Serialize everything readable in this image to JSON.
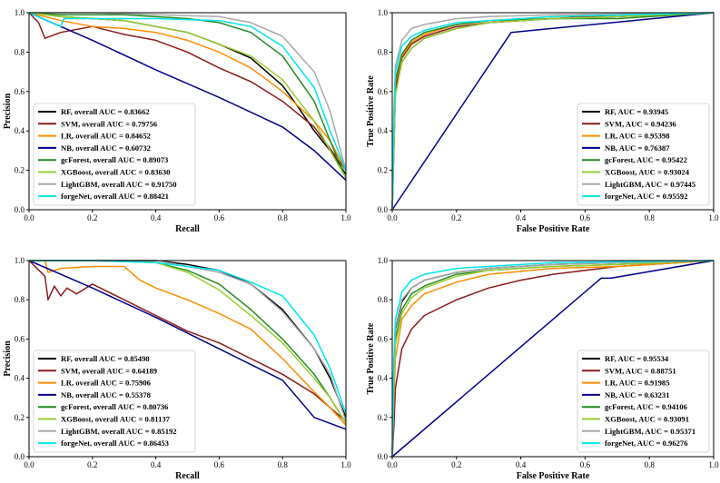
{
  "chart_data": [
    {
      "id": "pr1",
      "type": "line",
      "xlabel": "Recall",
      "ylabel": "Precision",
      "xlim": [
        0,
        1
      ],
      "ylim": [
        0,
        1
      ],
      "xticks": [
        "0.0",
        "0.2",
        "0.4",
        "0.6",
        "0.8",
        "1.0"
      ],
      "yticks": [
        "0.0",
        "0.2",
        "0.4",
        "0.6",
        "0.8",
        "1.0"
      ],
      "legend_position": "lower-left",
      "series": [
        {
          "name": "RF, overall AUC = 0.83662",
          "color": "#000000",
          "x": [
            0,
            0.1,
            0.3,
            0.5,
            0.6,
            0.7,
            0.8,
            0.85,
            0.9,
            0.95,
            1.0
          ],
          "y": [
            1.0,
            0.98,
            0.96,
            0.9,
            0.84,
            0.77,
            0.63,
            0.52,
            0.4,
            0.3,
            0.18
          ]
        },
        {
          "name": "SVM, overall AUC = 0.79756",
          "color": "#8b1a1a",
          "x": [
            0,
            0.03,
            0.05,
            0.1,
            0.2,
            0.3,
            0.4,
            0.5,
            0.6,
            0.7,
            0.8,
            0.9,
            1.0
          ],
          "y": [
            1.0,
            0.95,
            0.87,
            0.9,
            0.93,
            0.89,
            0.86,
            0.8,
            0.72,
            0.65,
            0.55,
            0.42,
            0.2
          ]
        },
        {
          "name": "LR, overall AUC = 0.84652",
          "color": "#ff8c00",
          "x": [
            0,
            0.05,
            0.1,
            0.2,
            0.3,
            0.4,
            0.5,
            0.6,
            0.7,
            0.8,
            0.9,
            0.95,
            1.0
          ],
          "y": [
            1.0,
            0.98,
            0.96,
            0.93,
            0.92,
            0.9,
            0.86,
            0.8,
            0.72,
            0.6,
            0.45,
            0.35,
            0.2
          ]
        },
        {
          "name": "NB, overall AUC = 0.60732",
          "color": "#00008b",
          "x": [
            0,
            0.2,
            0.4,
            0.6,
            0.8,
            0.9,
            1.0
          ],
          "y": [
            1.0,
            0.86,
            0.71,
            0.57,
            0.42,
            0.3,
            0.15
          ]
        },
        {
          "name": "gcForest, overall AUC = 0.89073",
          "color": "#228b22",
          "x": [
            0,
            0.1,
            0.3,
            0.5,
            0.6,
            0.7,
            0.8,
            0.9,
            0.95,
            1.0
          ],
          "y": [
            1.0,
            0.99,
            0.99,
            0.97,
            0.95,
            0.9,
            0.78,
            0.55,
            0.35,
            0.16
          ]
        },
        {
          "name": "XGBoost, overall AUC = 0.83630",
          "color": "#9acd32",
          "x": [
            0,
            0.1,
            0.3,
            0.5,
            0.6,
            0.7,
            0.8,
            0.9,
            0.95,
            1.0
          ],
          "y": [
            1.0,
            0.98,
            0.96,
            0.9,
            0.84,
            0.78,
            0.66,
            0.45,
            0.3,
            0.16
          ]
        },
        {
          "name": "LightGBM, overall AUC = 0.91750",
          "color": "#a9a9a9",
          "x": [
            0,
            0.2,
            0.4,
            0.6,
            0.7,
            0.8,
            0.9,
            0.95,
            1.0
          ],
          "y": [
            1.0,
            1.0,
            0.99,
            0.98,
            0.95,
            0.88,
            0.7,
            0.5,
            0.2
          ]
        },
        {
          "name": "forgeNet, overall AUC = 0.88421",
          "color": "#00e5ee",
          "x": [
            0,
            0.1,
            0.11,
            0.2,
            0.4,
            0.6,
            0.7,
            0.8,
            0.9,
            0.95,
            1.0
          ],
          "y": [
            1.0,
            0.93,
            0.97,
            0.97,
            0.97,
            0.96,
            0.93,
            0.83,
            0.62,
            0.4,
            0.2
          ]
        }
      ]
    },
    {
      "id": "roc1",
      "type": "line",
      "xlabel": "False Positive Rate",
      "ylabel": "True Positive Rate",
      "xlim": [
        0,
        1
      ],
      "ylim": [
        0,
        1
      ],
      "xticks": [
        "0.0",
        "0.2",
        "0.4",
        "0.6",
        "0.8",
        "1.0"
      ],
      "yticks": [
        "0.0",
        "0.2",
        "0.4",
        "0.6",
        "0.8",
        "1.0"
      ],
      "legend_position": "lower-right",
      "series": [
        {
          "name": "RF, AUC = 0.93945",
          "color": "#000000",
          "x": [
            0,
            0.005,
            0.01,
            0.03,
            0.06,
            0.1,
            0.2,
            0.3,
            0.5,
            0.7,
            1.0
          ],
          "y": [
            0,
            0.3,
            0.6,
            0.75,
            0.82,
            0.87,
            0.92,
            0.95,
            0.97,
            0.98,
            1.0
          ]
        },
        {
          "name": "SVM, AUC = 0.94236",
          "color": "#8b1a1a",
          "x": [
            0,
            0.005,
            0.01,
            0.03,
            0.06,
            0.1,
            0.2,
            0.3,
            0.5,
            0.7,
            1.0
          ],
          "y": [
            0,
            0.35,
            0.62,
            0.77,
            0.84,
            0.88,
            0.93,
            0.95,
            0.97,
            0.99,
            1.0
          ]
        },
        {
          "name": "LR, AUC = 0.95398",
          "color": "#ff8c00",
          "x": [
            0,
            0.005,
            0.01,
            0.03,
            0.06,
            0.1,
            0.2,
            0.3,
            0.5,
            0.7,
            1.0
          ],
          "y": [
            0,
            0.4,
            0.65,
            0.78,
            0.85,
            0.89,
            0.94,
            0.96,
            0.98,
            0.99,
            1.0
          ]
        },
        {
          "name": "NB, AUC = 0.76387",
          "color": "#00008b",
          "x": [
            0,
            0.37,
            1.0
          ],
          "y": [
            0,
            0.9,
            1.0
          ]
        },
        {
          "name": "gcForest, AUC = 0.95422",
          "color": "#228b22",
          "x": [
            0,
            0.005,
            0.01,
            0.03,
            0.06,
            0.1,
            0.2,
            0.3,
            0.5,
            0.7,
            1.0
          ],
          "y": [
            0,
            0.4,
            0.66,
            0.79,
            0.86,
            0.9,
            0.94,
            0.96,
            0.97,
            0.97,
            1.0
          ]
        },
        {
          "name": "XGBoost, AUC = 0.93024",
          "color": "#9acd32",
          "x": [
            0,
            0.005,
            0.01,
            0.03,
            0.06,
            0.1,
            0.2,
            0.3,
            0.5,
            0.7,
            1.0
          ],
          "y": [
            0,
            0.3,
            0.58,
            0.75,
            0.82,
            0.87,
            0.92,
            0.95,
            0.97,
            0.98,
            1.0
          ]
        },
        {
          "name": "LightGBM, AUC = 0.97445",
          "color": "#a9a9a9",
          "x": [
            0,
            0.005,
            0.01,
            0.03,
            0.06,
            0.1,
            0.2,
            0.3,
            0.5,
            1.0
          ],
          "y": [
            0,
            0.5,
            0.73,
            0.86,
            0.92,
            0.94,
            0.97,
            0.98,
            0.99,
            1.0
          ]
        },
        {
          "name": "forgeNet, AUC = 0.95592",
          "color": "#00e5ee",
          "x": [
            0,
            0.005,
            0.01,
            0.03,
            0.06,
            0.1,
            0.2,
            0.3,
            0.5,
            1.0
          ],
          "y": [
            0,
            0.45,
            0.7,
            0.83,
            0.88,
            0.91,
            0.95,
            0.96,
            0.98,
            1.0
          ]
        }
      ]
    },
    {
      "id": "pr2",
      "type": "line",
      "xlabel": "Recall",
      "ylabel": "Precision",
      "xlim": [
        0,
        1
      ],
      "ylim": [
        0,
        1
      ],
      "xticks": [
        "0.0",
        "0.2",
        "0.4",
        "0.6",
        "0.8",
        "1.0"
      ],
      "yticks": [
        "0.0",
        "0.2",
        "0.4",
        "0.6",
        "0.8",
        "1.0"
      ],
      "legend_position": "lower-left",
      "series": [
        {
          "name": "RF, overall AUC = 0.85498",
          "color": "#000000",
          "x": [
            0,
            0.2,
            0.4,
            0.5,
            0.6,
            0.7,
            0.8,
            0.9,
            0.95,
            1.0
          ],
          "y": [
            1.0,
            1.0,
            1.0,
            0.98,
            0.95,
            0.88,
            0.75,
            0.55,
            0.4,
            0.2
          ]
        },
        {
          "name": "SVM, overall AUC = 0.64189",
          "color": "#8b1a1a",
          "x": [
            0,
            0.05,
            0.06,
            0.08,
            0.1,
            0.12,
            0.15,
            0.2,
            0.3,
            0.4,
            0.5,
            0.6,
            0.7,
            0.8,
            0.9,
            1.0
          ],
          "y": [
            1.0,
            0.92,
            0.8,
            0.87,
            0.82,
            0.86,
            0.83,
            0.88,
            0.8,
            0.72,
            0.64,
            0.58,
            0.5,
            0.42,
            0.32,
            0.18
          ]
        },
        {
          "name": "LR, overall AUC = 0.75906",
          "color": "#ff8c00",
          "x": [
            0,
            0.05,
            0.06,
            0.1,
            0.2,
            0.3,
            0.35,
            0.4,
            0.5,
            0.6,
            0.7,
            0.8,
            0.9,
            0.95,
            1.0
          ],
          "y": [
            1.0,
            1.0,
            0.94,
            0.96,
            0.97,
            0.97,
            0.9,
            0.86,
            0.8,
            0.73,
            0.65,
            0.5,
            0.33,
            0.25,
            0.16
          ]
        },
        {
          "name": "NB, overall AUC = 0.55378",
          "color": "#00008b",
          "x": [
            0,
            0.2,
            0.4,
            0.6,
            0.8,
            0.9,
            1.0
          ],
          "y": [
            1.0,
            0.86,
            0.71,
            0.55,
            0.39,
            0.2,
            0.14
          ]
        },
        {
          "name": "gcForest, overall AUC = 0.80736",
          "color": "#228b22",
          "x": [
            0,
            0.2,
            0.4,
            0.5,
            0.6,
            0.7,
            0.8,
            0.9,
            0.95,
            1.0
          ],
          "y": [
            1.0,
            1.0,
            0.99,
            0.95,
            0.88,
            0.75,
            0.6,
            0.42,
            0.3,
            0.17
          ]
        },
        {
          "name": "XGBoost, overall AUC = 0.81137",
          "color": "#9acd32",
          "x": [
            0,
            0.2,
            0.4,
            0.5,
            0.6,
            0.7,
            0.8,
            0.9,
            0.95,
            1.0
          ],
          "y": [
            1.0,
            1.0,
            0.99,
            0.94,
            0.85,
            0.72,
            0.58,
            0.4,
            0.3,
            0.17
          ]
        },
        {
          "name": "LightGBM, overall AUC = 0.85192",
          "color": "#a9a9a9",
          "x": [
            0,
            0.2,
            0.4,
            0.5,
            0.6,
            0.7,
            0.8,
            0.9,
            0.95,
            1.0
          ],
          "y": [
            1.0,
            1.0,
            1.0,
            0.97,
            0.94,
            0.88,
            0.74,
            0.55,
            0.42,
            0.18
          ]
        },
        {
          "name": "forgeNet, overall AUC = 0.86453",
          "color": "#00e5ee",
          "x": [
            0,
            0.2,
            0.4,
            0.5,
            0.6,
            0.7,
            0.8,
            0.9,
            0.95,
            1.0
          ],
          "y": [
            1.0,
            1.0,
            0.99,
            0.97,
            0.95,
            0.89,
            0.82,
            0.62,
            0.45,
            0.22
          ]
        }
      ]
    },
    {
      "id": "roc2",
      "type": "line",
      "xlabel": "False Positive Rate",
      "ylabel": "True Positive Rate",
      "xlim": [
        0,
        1
      ],
      "ylim": [
        0,
        1
      ],
      "xticks": [
        "0.0",
        "0.2",
        "0.4",
        "0.6",
        "0.8",
        "1.0"
      ],
      "yticks": [
        "0.0",
        "0.2",
        "0.4",
        "0.6",
        "0.8",
        "1.0"
      ],
      "legend_position": "lower-right",
      "series": [
        {
          "name": "RF, AUC = 0.95534",
          "color": "#000000",
          "x": [
            0,
            0.005,
            0.01,
            0.03,
            0.06,
            0.1,
            0.2,
            0.3,
            0.5,
            0.7,
            1.0
          ],
          "y": [
            0,
            0.45,
            0.65,
            0.79,
            0.86,
            0.9,
            0.94,
            0.96,
            0.98,
            0.99,
            1.0
          ]
        },
        {
          "name": "SVM, AUC = 0.88751",
          "color": "#8b1a1a",
          "x": [
            0,
            0.005,
            0.01,
            0.03,
            0.06,
            0.1,
            0.2,
            0.3,
            0.4,
            0.5,
            0.7,
            1.0
          ],
          "y": [
            0,
            0.15,
            0.35,
            0.55,
            0.65,
            0.72,
            0.8,
            0.86,
            0.9,
            0.93,
            0.97,
            1.0
          ]
        },
        {
          "name": "LR, AUC = 0.91985",
          "color": "#ff8c00",
          "x": [
            0,
            0.005,
            0.01,
            0.03,
            0.06,
            0.1,
            0.2,
            0.3,
            0.5,
            0.7,
            1.0
          ],
          "y": [
            0,
            0.3,
            0.5,
            0.7,
            0.77,
            0.83,
            0.89,
            0.93,
            0.96,
            0.97,
            1.0
          ]
        },
        {
          "name": "NB, AUC = 0.63231",
          "color": "#00008b",
          "x": [
            0,
            0.65,
            0.68,
            1.0
          ],
          "y": [
            0,
            0.91,
            0.91,
            1.0
          ]
        },
        {
          "name": "gcForest, AUC = 0.94106",
          "color": "#228b22",
          "x": [
            0,
            0.005,
            0.01,
            0.03,
            0.06,
            0.1,
            0.2,
            0.3,
            0.5,
            0.7,
            1.0
          ],
          "y": [
            0,
            0.4,
            0.6,
            0.75,
            0.83,
            0.87,
            0.93,
            0.95,
            0.97,
            0.98,
            1.0
          ]
        },
        {
          "name": "XGBoost, AUC = 0.93091",
          "color": "#9acd32",
          "x": [
            0,
            0.005,
            0.01,
            0.03,
            0.06,
            0.1,
            0.2,
            0.3,
            0.5,
            0.7,
            1.0
          ],
          "y": [
            0,
            0.38,
            0.57,
            0.73,
            0.81,
            0.86,
            0.92,
            0.95,
            0.97,
            0.98,
            1.0
          ]
        },
        {
          "name": "LightGBM, AUC = 0.95371",
          "color": "#a9a9a9",
          "x": [
            0,
            0.005,
            0.01,
            0.03,
            0.06,
            0.1,
            0.2,
            0.3,
            0.5,
            0.7,
            1.0
          ],
          "y": [
            0,
            0.45,
            0.66,
            0.8,
            0.86,
            0.9,
            0.94,
            0.96,
            0.98,
            0.99,
            1.0
          ]
        },
        {
          "name": "forgeNet, AUC = 0.96276",
          "color": "#00e5ee",
          "x": [
            0,
            0.005,
            0.01,
            0.03,
            0.06,
            0.1,
            0.2,
            0.3,
            0.5,
            1.0
          ],
          "y": [
            0,
            0.5,
            0.7,
            0.84,
            0.9,
            0.93,
            0.96,
            0.97,
            0.99,
            1.0
          ]
        }
      ]
    }
  ]
}
